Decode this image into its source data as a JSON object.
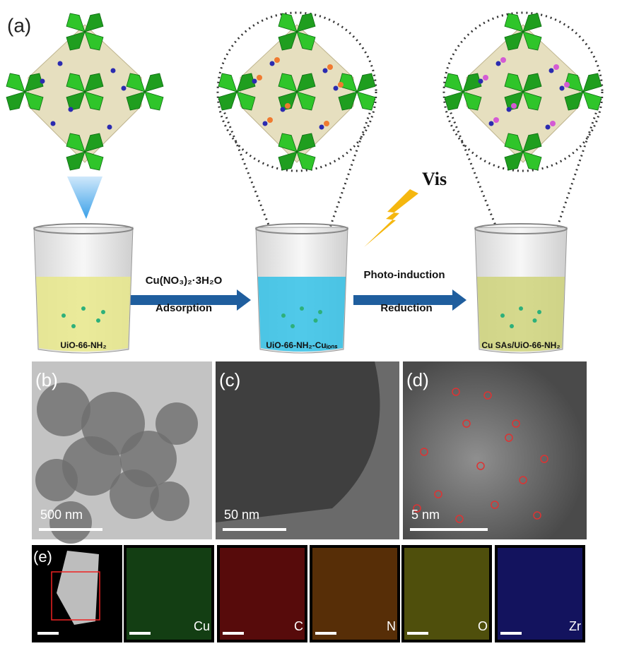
{
  "panel_a": {
    "label": "(a)",
    "light": "Vis",
    "reagent": "Cu(NO₃)₂·3H₂O",
    "step1": "Adsorption",
    "step2a": "Photo-induction",
    "step2b": "Reduction",
    "beakers": [
      "UiO-66-NH₂",
      "UiO-66-NH₂-Cuᵢₒₙₛ",
      "Cu SAs/UiO-66-NH₂"
    ]
  },
  "panels": [
    {
      "label": "(b)",
      "scale": "500 nm"
    },
    {
      "label": "(c)",
      "scale": "50 nm"
    },
    {
      "label": "(d)",
      "scale": "5 nm"
    }
  ],
  "panel_e": {
    "label": "(e)",
    "elements": [
      "Cu",
      "C",
      "N",
      "O",
      "Zr"
    ]
  }
}
